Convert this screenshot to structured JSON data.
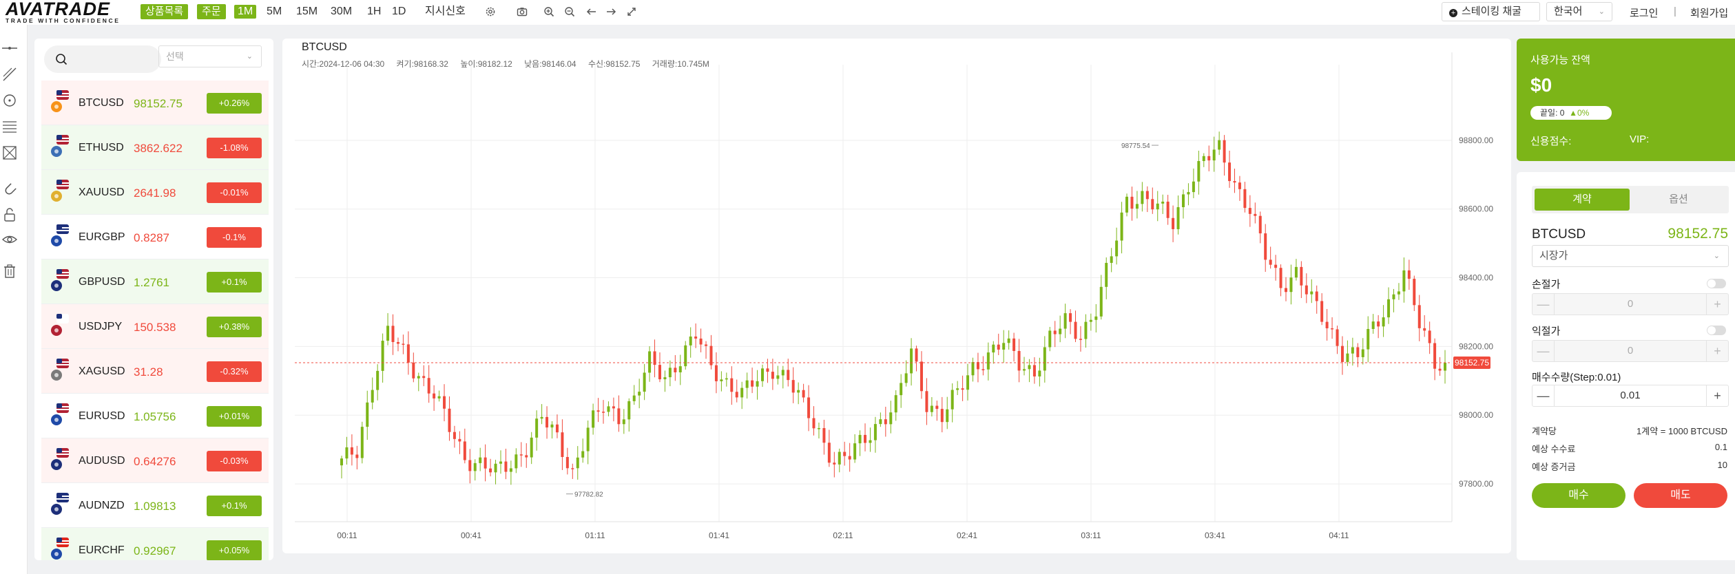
{
  "header": {
    "logo": {
      "wordmark": "AVATRADE",
      "tagline": "TRADE WITH CONFIDENCE"
    },
    "nav_buttons": [
      "상품목록",
      "주문"
    ],
    "timeframes": [
      "1M",
      "5M",
      "15M",
      "30M",
      "1H",
      "1D"
    ],
    "active_timeframe": "1M",
    "indicators_label": "지시신호",
    "tools": [
      "gear-icon",
      "camera-icon",
      "zoom-in-icon",
      "zoom-out-icon",
      "arrow-left-icon",
      "arrow-right-icon",
      "fullscreen-icon"
    ],
    "staking_label": "스테이킹 채굴",
    "language": "한국어",
    "login": "로그인",
    "separator": "|",
    "signup": "회원가입"
  },
  "left_tools": [
    "horizontal-line-icon",
    "trend-line-icon",
    "circle-icon",
    "fib-lines-icon",
    "pattern-icon",
    "magnet-icon",
    "lock-icon",
    "eye-icon",
    "trash-icon"
  ],
  "watchlist": {
    "search_placeholder": "",
    "select_placeholder": "선택",
    "items": [
      {
        "symbol": "BTCUSD",
        "price": "98152.75",
        "change": "+0.26%",
        "dir": "up",
        "flag": "btc-usa-flag-icon"
      },
      {
        "symbol": "ETHUSD",
        "price": "3862.622",
        "change": "-1.08%",
        "dir": "down",
        "flag": "eth-usa-flag-icon"
      },
      {
        "symbol": "XAUUSD",
        "price": "2641.98",
        "change": "-0.01%",
        "dir": "down",
        "flag": "gold-usa-flag-icon"
      },
      {
        "symbol": "EURGBP",
        "price": "0.8287",
        "change": "-0.1%",
        "dir": "down",
        "flag": "eu-uk-flag-icon"
      },
      {
        "symbol": "GBPUSD",
        "price": "1.2761",
        "change": "+0.1%",
        "dir": "up",
        "flag": "uk-usa-flag-icon"
      },
      {
        "symbol": "USDJPY",
        "price": "150.538",
        "change": "+0.38%",
        "dir": "down",
        "flag": "usa-japan-flag-icon"
      },
      {
        "symbol": "XAGUSD",
        "price": "31.28",
        "change": "-0.32%",
        "dir": "down",
        "flag": "silver-usa-flag-icon"
      },
      {
        "symbol": "EURUSD",
        "price": "1.05756",
        "change": "+0.01%",
        "dir": "up",
        "flag": "eu-usa-flag-icon"
      },
      {
        "symbol": "AUDUSD",
        "price": "0.64276",
        "change": "-0.03%",
        "dir": "down",
        "flag": "aus-usa-flag-icon"
      },
      {
        "symbol": "AUDNZD",
        "price": "1.09813",
        "change": "+0.1%",
        "dir": "up",
        "flag": "aus-nz-flag-icon"
      },
      {
        "symbol": "EURCHF",
        "price": "0.92967",
        "change": "+0.05%",
        "dir": "up",
        "flag": "eu-swiss-flag-icon"
      }
    ]
  },
  "chart": {
    "symbol": "BTCUSD",
    "ohlc": {
      "time": "시간:2024-12-06 04:30",
      "open": "켜기:98168.32",
      "high": "높이:98182.12",
      "low": "낮음:98146.04",
      "close": "수신:98152.75",
      "volume": "거래량:10.745M"
    },
    "colors": {
      "up": "#7cb518",
      "down": "#f04a3c",
      "grid": "#eeeeee"
    }
  },
  "chart_data": {
    "type": "candlestick",
    "x_ticks": [
      "00:11",
      "00:41",
      "01:11",
      "01:41",
      "02:11",
      "02:41",
      "03:11",
      "03:41",
      "04:11"
    ],
    "y_ticks": [
      "97800.00",
      "98000.00",
      "98200.00",
      "98400.00",
      "98600.00",
      "98800.00"
    ],
    "ylim": [
      97690,
      98980
    ],
    "current_price_label": "98152.75",
    "current_price": 98152.75,
    "max_label": "98775.54",
    "max_value": 98775.54,
    "min_label": "97782.82",
    "min_value": 97782.82,
    "grid": true,
    "anchors": [
      [
        0,
        97860
      ],
      [
        3,
        97900
      ],
      [
        6,
        98100
      ],
      [
        9,
        98240
      ],
      [
        12,
        98180
      ],
      [
        15,
        98120
      ],
      [
        18,
        98060
      ],
      [
        21,
        97960
      ],
      [
        24,
        97880
      ],
      [
        27,
        97860
      ],
      [
        30,
        97830
      ],
      [
        33,
        97860
      ],
      [
        36,
        97910
      ],
      [
        39,
        97990
      ],
      [
        42,
        97930
      ],
      [
        45,
        97840
      ],
      [
        48,
        97960
      ],
      [
        51,
        98020
      ],
      [
        54,
        98000
      ],
      [
        57,
        98050
      ],
      [
        60,
        98150
      ],
      [
        63,
        98110
      ],
      [
        66,
        98170
      ],
      [
        69,
        98230
      ],
      [
        72,
        98140
      ],
      [
        75,
        98100
      ],
      [
        78,
        98060
      ],
      [
        81,
        98100
      ],
      [
        84,
        98140
      ],
      [
        87,
        98110
      ],
      [
        90,
        98020
      ],
      [
        93,
        97950
      ],
      [
        96,
        97870
      ],
      [
        99,
        97880
      ],
      [
        102,
        97930
      ],
      [
        105,
        97990
      ],
      [
        108,
        98030
      ],
      [
        111,
        98180
      ],
      [
        114,
        98040
      ],
      [
        117,
        98000
      ],
      [
        120,
        98060
      ],
      [
        123,
        98140
      ],
      [
        126,
        98180
      ],
      [
        129,
        98210
      ],
      [
        132,
        98150
      ],
      [
        135,
        98130
      ],
      [
        138,
        98220
      ],
      [
        141,
        98270
      ],
      [
        144,
        98240
      ],
      [
        147,
        98310
      ],
      [
        150,
        98460
      ],
      [
        153,
        98630
      ],
      [
        156,
        98640
      ],
      [
        159,
        98600
      ],
      [
        162,
        98560
      ],
      [
        165,
        98680
      ],
      [
        168,
        98740
      ],
      [
        171,
        98770
      ],
      [
        174,
        98680
      ],
      [
        177,
        98600
      ],
      [
        180,
        98460
      ],
      [
        183,
        98380
      ],
      [
        186,
        98420
      ],
      [
        189,
        98330
      ],
      [
        192,
        98260
      ],
      [
        195,
        98190
      ],
      [
        198,
        98170
      ],
      [
        201,
        98250
      ],
      [
        204,
        98330
      ],
      [
        207,
        98420
      ],
      [
        210,
        98260
      ],
      [
        213,
        98160
      ],
      [
        215,
        98152
      ]
    ]
  },
  "balance": {
    "label": "사용가능 잔액",
    "value": "$0",
    "pill_text": "끝일: 0",
    "pill_change": "▲0%",
    "credit_label": "신용점수:",
    "vip_label": "VIP:"
  },
  "order": {
    "tabs": [
      "계약",
      "옵션"
    ],
    "active_tab": 0,
    "symbol": "BTCUSD",
    "price": "98152.75",
    "order_type": "시장가",
    "stop_loss_label": "손절가",
    "stop_loss_value": "0",
    "take_profit_label": "익절가",
    "take_profit_value": "0",
    "qty_label": "매수수량(Step:0.01)",
    "qty_value": "0.01",
    "minus": "—",
    "plus": "+",
    "info": [
      {
        "label": "계약당",
        "value": "1계약 = 1000 BTCUSD"
      },
      {
        "label": "예상 수수료",
        "value": "0.1"
      },
      {
        "label": "예상 증거금",
        "value": "10"
      }
    ],
    "buy_label": "매수",
    "sell_label": "매도"
  }
}
